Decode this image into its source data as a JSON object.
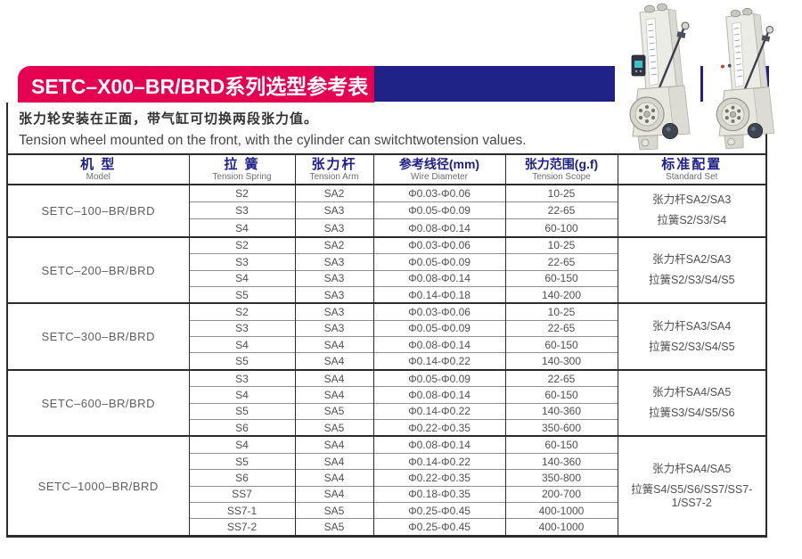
{
  "banner": {
    "title": "SETC–X00–BR/BRD系列选型参考表"
  },
  "intro": {
    "line_zh": "张力轮安装在正面，带气缸可切换两段张力值。",
    "line_en": "Tension wheel mounted on the front, with the cylinder can switchtwotension values."
  },
  "colors": {
    "accent_red": "#E60050",
    "accent_blue": "#1F2388",
    "header_text_blue": "#1D2088"
  },
  "photos": {
    "left_label": "tension-controller-with-display",
    "right_label": "tension-controller-with-leds"
  },
  "table": {
    "headers": [
      {
        "zh": "机 型",
        "en": "Model"
      },
      {
        "zh": "拉 簧",
        "en": "Tension Spring"
      },
      {
        "zh": "张力杆",
        "en": "Tension Arm"
      },
      {
        "zh": "参考线径(mm)",
        "en": "Wire Diameter"
      },
      {
        "zh": "张力范围(g.f)",
        "en": "Tension Scope"
      },
      {
        "zh": "标准配置",
        "en": "Standard Set"
      }
    ],
    "groups": [
      {
        "model": "SETC–100–BR/BRD",
        "rows": [
          [
            "S2",
            "SA2",
            "Φ0.03-Φ0.06",
            "10-25"
          ],
          [
            "S3",
            "SA3",
            "Φ0.05-Φ0.09",
            "22-65"
          ],
          [
            "S4",
            "SA3",
            "Φ0.08-Φ0.14",
            "60-100"
          ]
        ],
        "standard": [
          "张力杆SA2/SA3",
          "拉簧S2/S3/S4"
        ]
      },
      {
        "model": "SETC–200–BR/BRD",
        "rows": [
          [
            "S2",
            "SA2",
            "Φ0.03-Φ0.06",
            "10-25"
          ],
          [
            "S3",
            "SA3",
            "Φ0.05-Φ0.09",
            "22-65"
          ],
          [
            "S4",
            "SA3",
            "Φ0.08-Φ0.14",
            "60-150"
          ],
          [
            "S5",
            "SA3",
            "Φ0.14-Φ0.18",
            "140-200"
          ]
        ],
        "standard": [
          "张力杆SA2/SA3",
          "拉簧S2/S3/S4/S5"
        ]
      },
      {
        "model": "SETC–300–BR/BRD",
        "rows": [
          [
            "S2",
            "SA3",
            "Φ0.03-Φ0.06",
            "10-25"
          ],
          [
            "S3",
            "SA3",
            "Φ0.05-Φ0.09",
            "22-65"
          ],
          [
            "S4",
            "SA4",
            "Φ0.08-Φ0.14",
            "60-150"
          ],
          [
            "S5",
            "SA4",
            "Φ0.14-Φ0.22",
            "140-300"
          ]
        ],
        "standard": [
          "张力杆SA3/SA4",
          "拉簧S2/S3/S4/S5"
        ]
      },
      {
        "model": "SETC–600–BR/BRD",
        "rows": [
          [
            "S3",
            "SA4",
            "Φ0.05-Φ0.09",
            "22-65"
          ],
          [
            "S4",
            "SA4",
            "Φ0.08-Φ0.14",
            "60-150"
          ],
          [
            "S5",
            "SA5",
            "Φ0.14-Φ0.22",
            "140-360"
          ],
          [
            "S6",
            "SA5",
            "Φ0.22-Φ0.35",
            "350-600"
          ]
        ],
        "standard": [
          "张力杆SA4/SA5",
          "拉簧S3/S4/S5/S6"
        ]
      },
      {
        "model": "SETC–1000–BR/BRD",
        "rows": [
          [
            "S4",
            "SA4",
            "Φ0.08-Φ0.14",
            "60-150"
          ],
          [
            "S5",
            "SA4",
            "Φ0.14-Φ0.22",
            "140-360"
          ],
          [
            "S6",
            "SA4",
            "Φ0.22-Φ0.35",
            "350-800"
          ],
          [
            "SS7",
            "SA4",
            "Φ0.18-Φ0.35",
            "200-700"
          ],
          [
            "SS7-1",
            "SA5",
            "Φ0.25-Φ0.45",
            "400-1000"
          ],
          [
            "SS7-2",
            "SA5",
            "Φ0.25-Φ0.45",
            "400-1000"
          ]
        ],
        "standard": [
          "张力杆SA4/SA5",
          "拉簧S4/S5/S6/SS7/SS7-1/SS7-2"
        ]
      }
    ]
  }
}
